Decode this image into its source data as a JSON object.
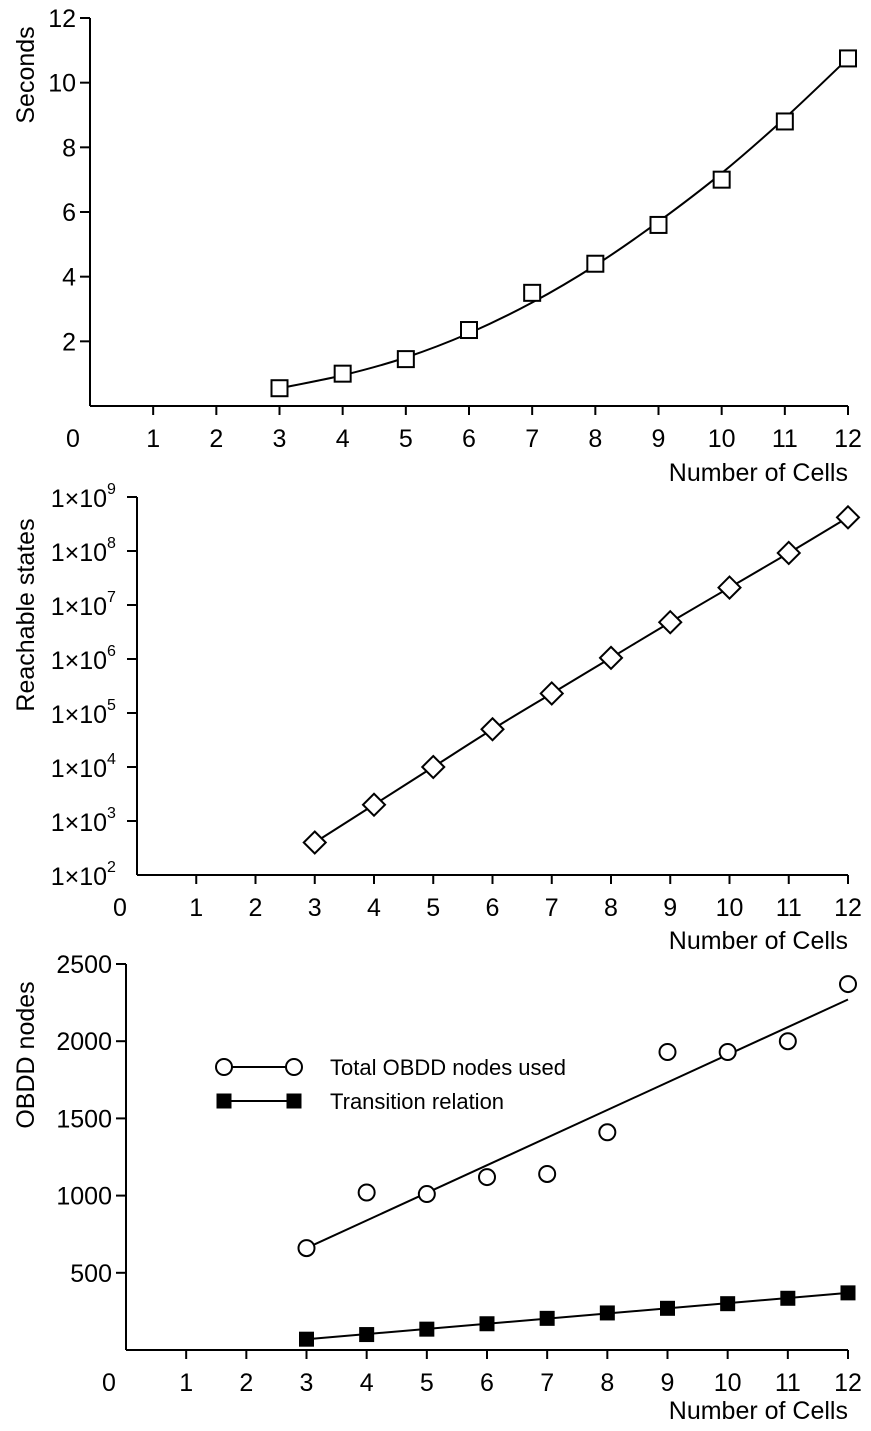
{
  "chart_data": [
    {
      "type": "line",
      "xlabel": "Number of Cells",
      "ylabel": "Seconds",
      "xlim": [
        0,
        12
      ],
      "ylim": [
        0,
        12
      ],
      "x_ticks": [
        "0",
        "1",
        "2",
        "3",
        "4",
        "5",
        "6",
        "7",
        "8",
        "9",
        "10",
        "11",
        "12"
      ],
      "y_ticks": [
        "2",
        "4",
        "6",
        "8",
        "10",
        "12"
      ],
      "y_tick_values": [
        2,
        4,
        6,
        8,
        10,
        12
      ],
      "grid": false,
      "series": [
        {
          "marker": "square-open",
          "x": [
            3,
            4,
            5,
            6,
            7,
            8,
            9,
            10,
            11,
            12
          ],
          "y": [
            0.55,
            1.0,
            1.45,
            2.35,
            3.5,
            4.4,
            5.6,
            7.0,
            8.8,
            10.75
          ],
          "fit_x": [
            3,
            4,
            5,
            6,
            7,
            8,
            9,
            10,
            11,
            12
          ],
          "fit_y": [
            0.55,
            0.95,
            1.5,
            2.25,
            3.2,
            4.35,
            5.7,
            7.2,
            8.9,
            10.75
          ]
        }
      ]
    },
    {
      "type": "line",
      "xlabel": "Number of Cells",
      "ylabel": "Reachable states",
      "yscale": "log",
      "xlim": [
        0,
        12
      ],
      "ylim": [
        100,
        1000000000
      ],
      "x_ticks": [
        "0",
        "1",
        "2",
        "3",
        "4",
        "5",
        "6",
        "7",
        "8",
        "9",
        "10",
        "11",
        "12"
      ],
      "y_ticks": [
        {
          "mant": "1×10",
          "exp": "2",
          "value": 100
        },
        {
          "mant": "1×10",
          "exp": "3",
          "value": 1000
        },
        {
          "mant": "1×10",
          "exp": "4",
          "value": 10000
        },
        {
          "mant": "1×10",
          "exp": "5",
          "value": 100000
        },
        {
          "mant": "1×10",
          "exp": "6",
          "value": 1000000
        },
        {
          "mant": "1×10",
          "exp": "7",
          "value": 10000000
        },
        {
          "mant": "1×10",
          "exp": "8",
          "value": 100000000
        },
        {
          "mant": "1×10",
          "exp": "9",
          "value": 1000000000
        }
      ],
      "grid": false,
      "series": [
        {
          "marker": "diamond-open",
          "x": [
            3,
            4,
            5,
            6,
            7,
            8,
            9,
            10,
            11,
            12
          ],
          "y": [
            400,
            2000,
            10000,
            50000,
            230000,
            1050000,
            4800000,
            21000000,
            92000000,
            420000000
          ]
        }
      ]
    },
    {
      "type": "line",
      "xlabel": "Number of Cells",
      "ylabel": "OBDD nodes",
      "xlim": [
        0,
        12
      ],
      "ylim": [
        0,
        2500
      ],
      "x_ticks": [
        "0",
        "1",
        "2",
        "3",
        "4",
        "5",
        "6",
        "7",
        "8",
        "9",
        "10",
        "11",
        "12"
      ],
      "y_ticks": [
        "500",
        "1000",
        "1500",
        "2000",
        "2500"
      ],
      "y_tick_values": [
        500,
        1000,
        1500,
        2000,
        2500
      ],
      "grid": false,
      "legend": "upper-left",
      "series": [
        {
          "name": "Total OBDD nodes used",
          "marker": "circle-open",
          "x": [
            3,
            4,
            5,
            6,
            7,
            8,
            9,
            10,
            11,
            12
          ],
          "y": [
            660,
            1020,
            1010,
            1120,
            1140,
            1410,
            1930,
            1930,
            2000,
            2370
          ],
          "fit_x": [
            3,
            12
          ],
          "fit_y": [
            660,
            2270
          ]
        },
        {
          "name": "Transition relation",
          "marker": "square-filled",
          "x": [
            3,
            4,
            5,
            6,
            7,
            8,
            9,
            10,
            11,
            12
          ],
          "y": [
            70,
            100,
            135,
            170,
            205,
            240,
            270,
            300,
            335,
            370
          ],
          "fit_x": [
            3,
            12
          ],
          "fit_y": [
            70,
            370
          ]
        }
      ]
    }
  ]
}
